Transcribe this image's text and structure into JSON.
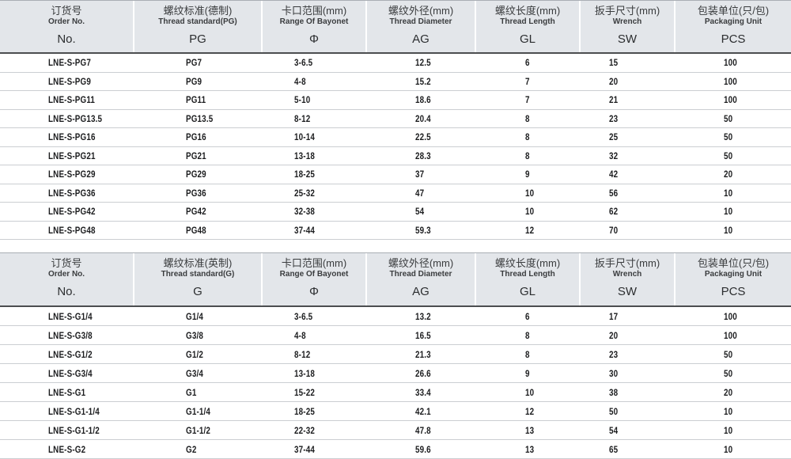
{
  "page": {
    "kind": "product-specification-catalog-page",
    "colors": {
      "header_bg": "#e3e6ea",
      "header_border_dark": "#4c4e50",
      "row_divider": "#cbced2",
      "text_dark": "#1b1c1e"
    }
  },
  "tables": [
    {
      "id": "pg-thread-table",
      "columns": [
        {
          "zh": "订货号",
          "en": "Order No.",
          "symbol": "No."
        },
        {
          "zh": "螺纹标准(德制)",
          "en": "Thread standard(PG)",
          "symbol": "PG"
        },
        {
          "zh": "卡口范围(mm)",
          "en": "Range Of Bayonet",
          "symbol": "Φ"
        },
        {
          "zh": "螺纹外径(mm)",
          "en": "Thread Diameter",
          "symbol": "AG"
        },
        {
          "zh": "螺纹长度(mm)",
          "en": "Thread Length",
          "symbol": "GL"
        },
        {
          "zh": "扳手尺寸(mm)",
          "en": "Wrench",
          "symbol": "SW"
        },
        {
          "zh": "包装单位(只/包)",
          "en": "Packaging Unit",
          "symbol": "PCS"
        }
      ],
      "rows": [
        [
          "LNE-S-PG7",
          "PG7",
          "3-6.5",
          "12.5",
          "6",
          "15",
          "100"
        ],
        [
          "LNE-S-PG9",
          "PG9",
          "4-8",
          "15.2",
          "7",
          "20",
          "100"
        ],
        [
          "LNE-S-PG11",
          "PG11",
          "5-10",
          "18.6",
          "7",
          "21",
          "100"
        ],
        [
          "LNE-S-PG13.5",
          "PG13.5",
          "8-12",
          "20.4",
          "8",
          "23",
          "50"
        ],
        [
          "LNE-S-PG16",
          "PG16",
          "10-14",
          "22.5",
          "8",
          "25",
          "50"
        ],
        [
          "LNE-S-PG21",
          "PG21",
          "13-18",
          "28.3",
          "8",
          "32",
          "50"
        ],
        [
          "LNE-S-PG29",
          "PG29",
          "18-25",
          "37",
          "9",
          "42",
          "20"
        ],
        [
          "LNE-S-PG36",
          "PG36",
          "25-32",
          "47",
          "10",
          "56",
          "10"
        ],
        [
          "LNE-S-PG42",
          "PG42",
          "32-38",
          "54",
          "10",
          "62",
          "10"
        ],
        [
          "LNE-S-PG48",
          "PG48",
          "37-44",
          "59.3",
          "12",
          "70",
          "10"
        ]
      ]
    },
    {
      "id": "g-thread-table",
      "columns": [
        {
          "zh": "订货号",
          "en": "Order No.",
          "symbol": "No."
        },
        {
          "zh": "螺纹标准(英制)",
          "en": "Thread standard(G)",
          "symbol": "G"
        },
        {
          "zh": "卡口范围(mm)",
          "en": "Range Of Bayonet",
          "symbol": "Φ"
        },
        {
          "zh": "螺纹外径(mm)",
          "en": "Thread Diameter",
          "symbol": "AG"
        },
        {
          "zh": "螺纹长度(mm)",
          "en": "Thread Length",
          "symbol": "GL"
        },
        {
          "zh": "扳手尺寸(mm)",
          "en": "Wrench",
          "symbol": "SW"
        },
        {
          "zh": "包装单位(只/包)",
          "en": "Packaging Unit",
          "symbol": "PCS"
        }
      ],
      "rows": [
        [
          "LNE-S-G1/4",
          "G1/4",
          "3-6.5",
          "13.2",
          "6",
          "17",
          "100"
        ],
        [
          "LNE-S-G3/8",
          "G3/8",
          "4-8",
          "16.5",
          "8",
          "20",
          "100"
        ],
        [
          "LNE-S-G1/2",
          "G1/2",
          "8-12",
          "21.3",
          "8",
          "23",
          "50"
        ],
        [
          "LNE-S-G3/4",
          "G3/4",
          "13-18",
          "26.6",
          "9",
          "30",
          "50"
        ],
        [
          "LNE-S-G1",
          "G1",
          "15-22",
          "33.4",
          "10",
          "38",
          "20"
        ],
        [
          "LNE-S-G1-1/4",
          "G1-1/4",
          "18-25",
          "42.1",
          "12",
          "50",
          "10"
        ],
        [
          "LNE-S-G1-1/2",
          "G1-1/2",
          "22-32",
          "47.8",
          "13",
          "54",
          "10"
        ],
        [
          "LNE-S-G2",
          "G2",
          "37-44",
          "59.6",
          "13",
          "65",
          "10"
        ]
      ]
    }
  ]
}
